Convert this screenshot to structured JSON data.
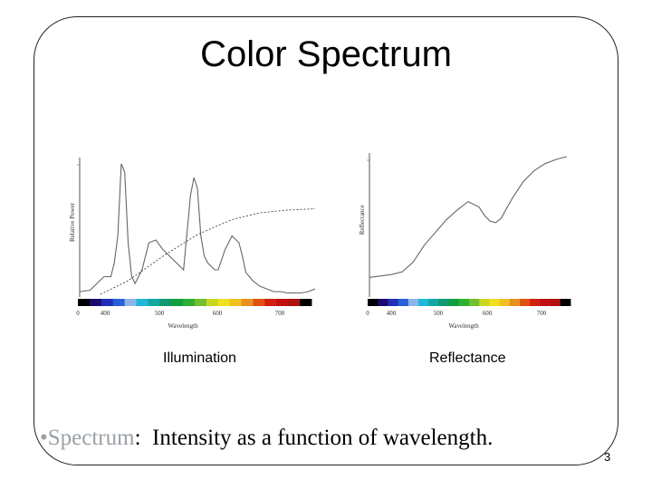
{
  "slide": {
    "title": "Color Spectrum",
    "page_number": "3",
    "bullet": {
      "marker": "•",
      "term": "Spectrum",
      "colon": ":",
      "text": "  Intensity as a function of wavelength."
    }
  },
  "chart_data": [
    {
      "type": "line",
      "caption": "Illumination",
      "xlabel": "Wavelength",
      "ylabel": "Relative Power",
      "x_ticks": [
        "0",
        "400",
        "500",
        "600",
        "700"
      ],
      "spectrum_bar": true,
      "series": [
        {
          "name": "",
          "style": "solid",
          "x": [
            380,
            395,
            405,
            415,
            425,
            430,
            435,
            440,
            445,
            450,
            455,
            460,
            470,
            480,
            490,
            500,
            510,
            520,
            530,
            540,
            545,
            550,
            555,
            560,
            565,
            575,
            580,
            590,
            600,
            610,
            615,
            620,
            630,
            640,
            650,
            660,
            670,
            680,
            690,
            700,
            710,
            720
          ],
          "y": [
            0.04,
            0.05,
            0.1,
            0.15,
            0.15,
            0.25,
            0.45,
            0.98,
            0.92,
            0.4,
            0.15,
            0.1,
            0.2,
            0.4,
            0.42,
            0.35,
            0.3,
            0.25,
            0.2,
            0.75,
            0.88,
            0.8,
            0.45,
            0.3,
            0.25,
            0.2,
            0.2,
            0.35,
            0.45,
            0.4,
            0.3,
            0.18,
            0.12,
            0.08,
            0.06,
            0.04,
            0.04,
            0.03,
            0.03,
            0.03,
            0.04,
            0.06
          ]
        },
        {
          "name": "",
          "style": "dotted",
          "x": [
            410,
            450,
            500,
            550,
            600,
            640,
            680,
            720
          ],
          "y": [
            0.02,
            0.12,
            0.3,
            0.46,
            0.57,
            0.62,
            0.64,
            0.65
          ]
        }
      ]
    },
    {
      "type": "line",
      "caption": "Reflectance",
      "xlabel": "Wavelength",
      "ylabel": "Reflectance",
      "x_ticks": [
        "0",
        "400",
        "500",
        "600",
        "700"
      ],
      "spectrum_bar": true,
      "series": [
        {
          "name": "",
          "style": "solid",
          "x": [
            380,
            400,
            420,
            440,
            460,
            480,
            500,
            520,
            540,
            560,
            580,
            590,
            600,
            610,
            620,
            640,
            660,
            680,
            700,
            720,
            740
          ],
          "y": [
            0.14,
            0.15,
            0.16,
            0.18,
            0.25,
            0.37,
            0.46,
            0.55,
            0.62,
            0.68,
            0.64,
            0.58,
            0.54,
            0.53,
            0.56,
            0.7,
            0.82,
            0.9,
            0.95,
            0.98,
            1.0
          ]
        }
      ]
    }
  ]
}
